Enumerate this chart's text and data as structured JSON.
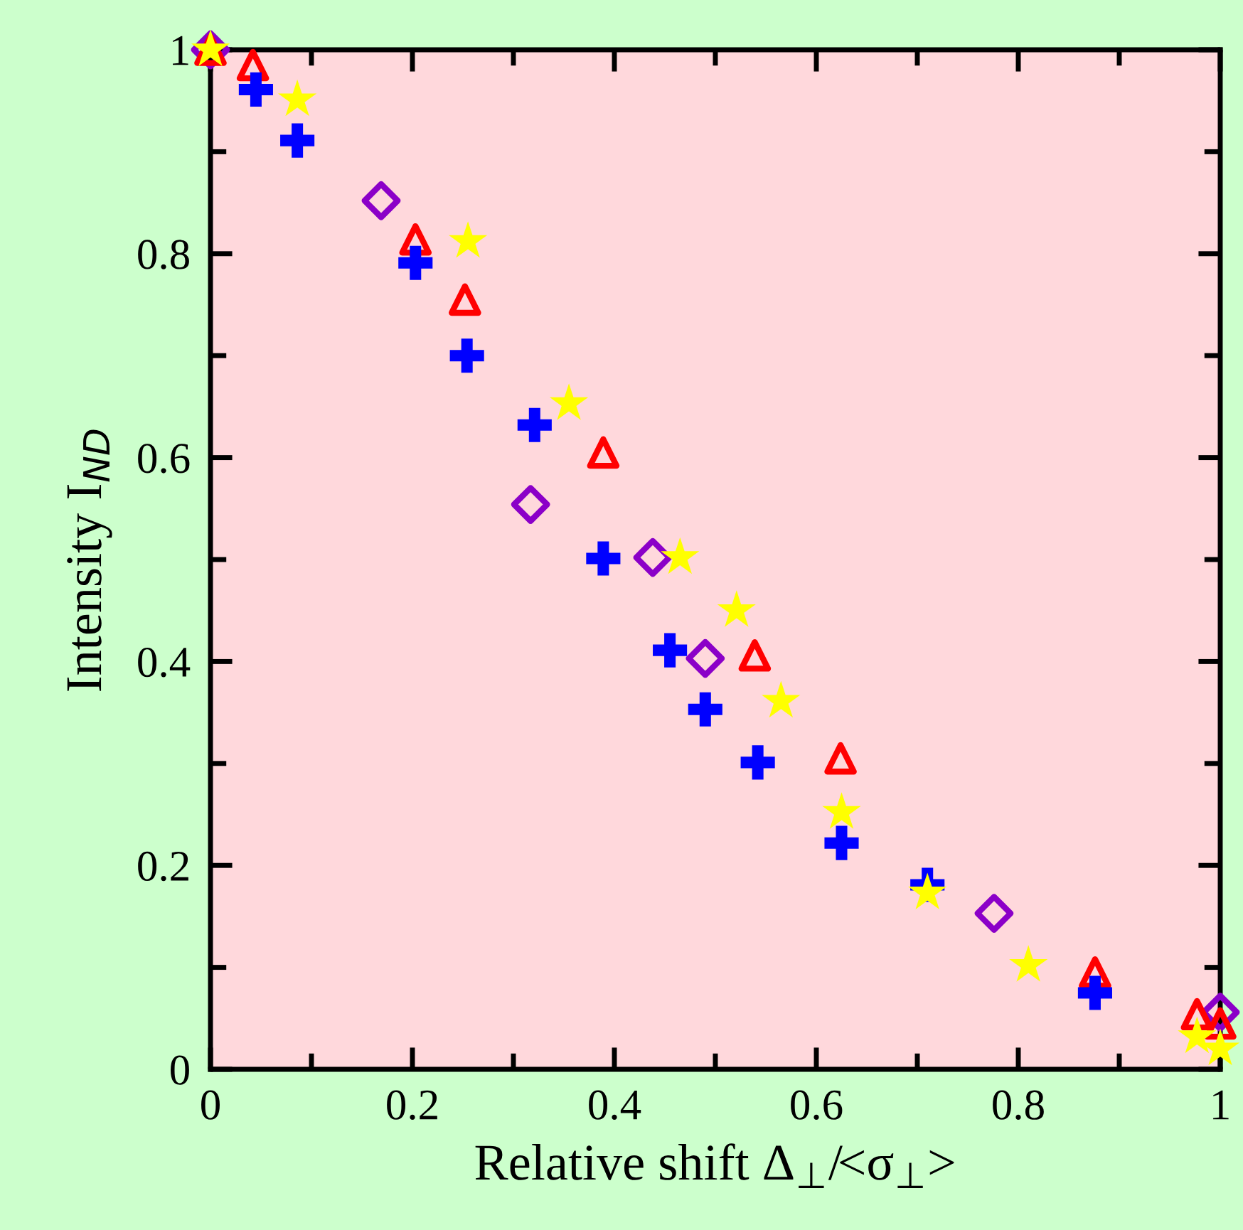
{
  "chart_data": {
    "type": "scatter",
    "xlabel": "Relative shift Δ$_{⊥}$/<σ$_{⊥}$>",
    "ylabel": "Intensity I$_{ND}$",
    "xlim": [
      0,
      1
    ],
    "ylim": [
      0,
      1
    ],
    "xticks": [
      0,
      {
        "value": 0.1,
        "label": null
      },
      0.2,
      {
        "value": 0.3,
        "label": null
      },
      0.4,
      {
        "value": 0.5,
        "label": null
      },
      0.6,
      {
        "value": 0.7,
        "label": null
      },
      0.8,
      {
        "value": 0.9,
        "label": null
      },
      1
    ],
    "yticks": [
      0,
      {
        "value": 0.1,
        "label": null
      },
      0.2,
      {
        "value": 0.3,
        "label": null
      },
      0.4,
      {
        "value": 0.5,
        "label": null
      },
      0.6,
      {
        "value": 0.7,
        "label": null
      },
      0.8,
      {
        "value": 0.9,
        "label": null
      },
      1
    ],
    "grid": false,
    "legend": false,
    "series": [
      {
        "color": "#8b00c8",
        "marker": "diamond",
        "x": [
          0,
          0.169,
          0.317,
          0.438,
          0.49,
          0.776,
          1.0
        ],
        "values": [
          1,
          0.852,
          0.554,
          0.502,
          0.403,
          0.153,
          0.056
        ]
      },
      {
        "color": "#ff0000",
        "marker": "triangle",
        "x": [
          0,
          0.042,
          0.203,
          0.252,
          0.389,
          0.539,
          0.624,
          0.876,
          0.977,
          1.0
        ],
        "values": [
          1,
          0.985,
          0.814,
          0.755,
          0.605,
          0.406,
          0.305,
          0.095,
          0.054,
          0.045
        ]
      },
      {
        "color": "#0000ff",
        "marker": "cross",
        "x": [
          0.045,
          0.086,
          0.203,
          0.254,
          0.321,
          0.389,
          0.455,
          0.49,
          0.542,
          0.625,
          0.71,
          0.876
        ],
        "values": [
          0.961,
          0.911,
          0.791,
          0.7,
          0.632,
          0.501,
          0.411,
          0.353,
          0.301,
          0.222,
          0.181,
          0.075
        ]
      },
      {
        "color": "#ffff00",
        "marker": "star",
        "x": [
          0,
          0.086,
          0.255,
          0.355,
          0.465,
          0.521,
          0.565,
          0.625,
          0.71,
          0.81,
          0.977,
          1.0
        ],
        "values": [
          1,
          0.951,
          0.812,
          0.653,
          0.502,
          0.45,
          0.361,
          0.252,
          0.173,
          0.102,
          0.032,
          0.02
        ]
      }
    ]
  }
}
